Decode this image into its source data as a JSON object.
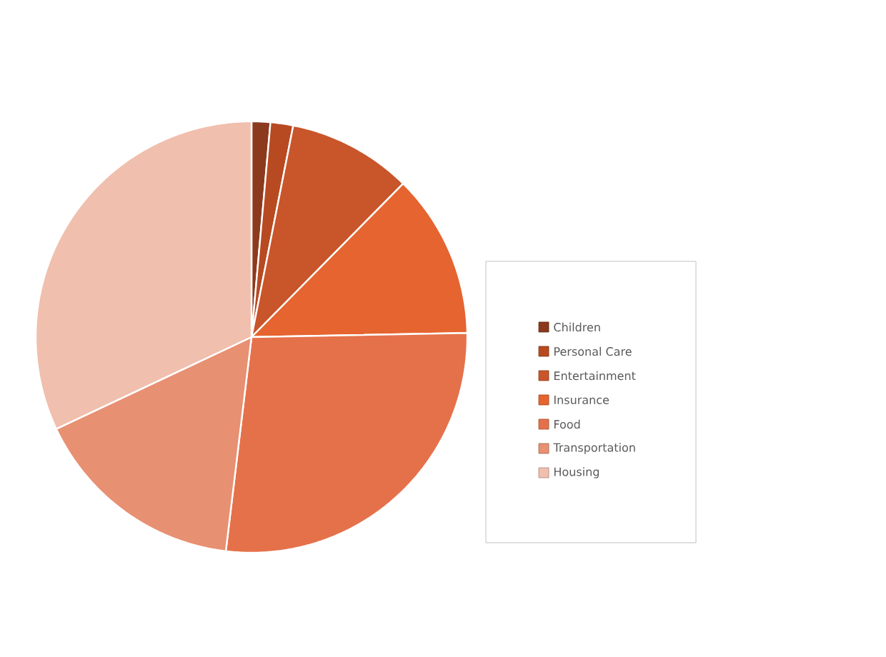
{
  "chart_data": {
    "type": "pie",
    "categories": [
      "Children",
      "Personal Care",
      "Entertainment",
      "Insurance",
      "Food",
      "Transportation",
      "Housing"
    ],
    "values": [
      1.4,
      1.7,
      9.3,
      12.3,
      27.2,
      16.1,
      32.0
    ],
    "colors": [
      "#8b3a1e",
      "#b84a22",
      "#c9552a",
      "#e5642f",
      "#e5714a",
      "#e89072",
      "#f0bfae"
    ],
    "legend": "right"
  }
}
